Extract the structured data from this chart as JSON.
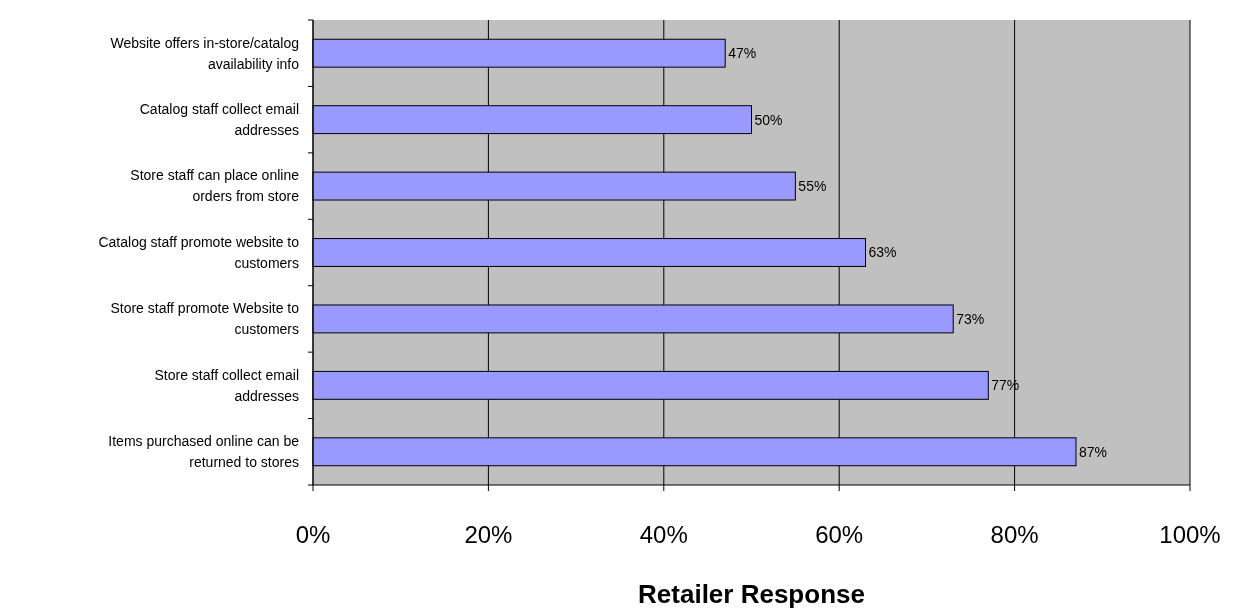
{
  "chart_data": {
    "type": "bar",
    "orientation": "horizontal",
    "xlabel": "Retailer Response",
    "categories": [
      "Website offers in-store/catalog availability info",
      "Catalog staff collect email addresses",
      "Store staff can place online orders from store",
      "Catalog staff promote website to customers",
      "Store staff promote Website to customers",
      "Store staff collect email addresses",
      "Items purchased online can be returned to stores"
    ],
    "values": [
      47,
      50,
      55,
      63,
      73,
      77,
      87
    ],
    "value_labels": [
      "47%",
      "50%",
      "55%",
      "63%",
      "73%",
      "77%",
      "87%"
    ],
    "color": "#9999ff",
    "xlim": [
      0,
      100
    ],
    "xticks": [
      {
        "value": 0,
        "label": "0%"
      },
      {
        "value": 20,
        "label": "20%"
      },
      {
        "value": 40,
        "label": "40%"
      },
      {
        "value": 60,
        "label": "60%"
      },
      {
        "value": 80,
        "label": "80%"
      },
      {
        "value": 100,
        "label": "100%"
      }
    ],
    "grid": "x"
  }
}
